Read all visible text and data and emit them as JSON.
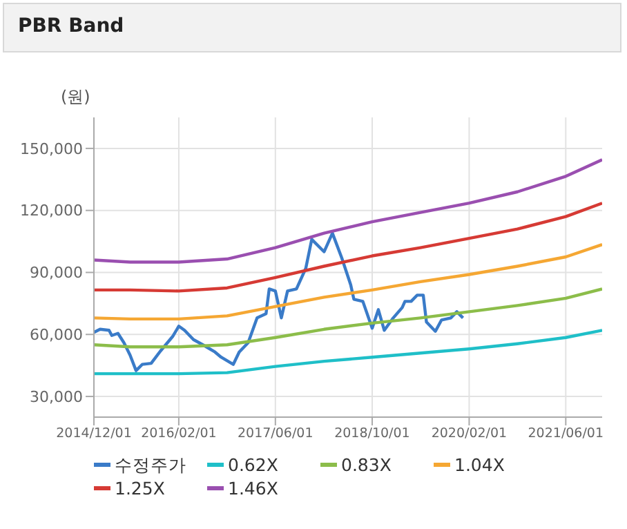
{
  "chart_data": {
    "type": "line",
    "title": "PBR Band",
    "ylabel": "(원)",
    "xlim": [
      "2014-12-01",
      "2021-12-01"
    ],
    "xticks": [
      {
        "value": "2014-12-01",
        "label": "2014/12/01"
      },
      {
        "value": "2016-02-01",
        "label": "2016/02/01"
      },
      {
        "value": "2017-06-01",
        "label": "2017/06/01"
      },
      {
        "value": "2018-10-01",
        "label": "2018/10/01"
      },
      {
        "value": "2020-02-01",
        "label": "2020/02/01"
      },
      {
        "value": "2021-06-01",
        "label": "2021/06/01"
      }
    ],
    "ylim": [
      20000,
      165000
    ],
    "yticks": [
      {
        "value": 30000,
        "label": "30,000"
      },
      {
        "value": 60000,
        "label": "60,000"
      },
      {
        "value": 90000,
        "label": "90,000"
      },
      {
        "value": 120000,
        "label": "120,000"
      },
      {
        "value": 150000,
        "label": "150,000"
      }
    ],
    "grid": true,
    "legend": "bottom",
    "marker": "none",
    "line_style": "solid",
    "series": [
      {
        "name": "수정주가",
        "color": "#3a7bc8",
        "x": [
          "2014-12-01",
          "2015-01-01",
          "2015-02-15",
          "2015-03-01",
          "2015-04-01",
          "2015-05-01",
          "2015-06-01",
          "2015-07-01",
          "2015-08-01",
          "2015-09-15",
          "2015-11-01",
          "2016-01-01",
          "2016-02-01",
          "2016-03-01",
          "2016-04-15",
          "2016-06-01",
          "2016-08-01",
          "2016-09-01",
          "2016-11-01",
          "2016-12-01",
          "2017-01-15",
          "2017-03-01",
          "2017-04-15",
          "2017-05-01",
          "2017-06-01",
          "2017-07-01",
          "2017-08-01",
          "2017-09-15",
          "2017-11-01",
          "2017-12-01",
          "2018-02-01",
          "2018-03-15",
          "2018-05-01",
          "2018-06-15",
          "2018-07-01",
          "2018-08-15",
          "2018-10-01",
          "2018-11-01",
          "2018-12-01",
          "2019-01-15",
          "2019-03-01",
          "2019-03-15",
          "2019-04-15",
          "2019-05-15",
          "2019-06-15",
          "2019-07-01",
          "2019-08-15",
          "2019-09-15",
          "2019-11-01",
          "2019-12-01",
          "2020-01-01"
        ],
        "values": [
          61000,
          62500,
          62000,
          59500,
          60500,
          56000,
          50000,
          42500,
          45500,
          46000,
          52000,
          59000,
          64000,
          62000,
          57500,
          55000,
          51500,
          49000,
          45500,
          51500,
          56000,
          68000,
          70000,
          82000,
          81000,
          68000,
          81000,
          82000,
          92000,
          106000,
          100000,
          109000,
          97000,
          84000,
          77000,
          76000,
          63000,
          72000,
          62000,
          68000,
          73000,
          76000,
          76000,
          79000,
          79000,
          66000,
          61500,
          67000,
          68000,
          71000,
          68000
        ]
      },
      {
        "name": "0.62X",
        "color": "#1fbfc8",
        "x": [
          "2014-12-01",
          "2015-06-01",
          "2016-02-01",
          "2016-10-01",
          "2017-06-01",
          "2018-02-01",
          "2018-10-01",
          "2019-06-01",
          "2020-02-01",
          "2020-10-01",
          "2021-06-01",
          "2021-12-01"
        ],
        "values": [
          41000,
          41000,
          41000,
          41500,
          44500,
          47000,
          49000,
          51000,
          53000,
          55500,
          58500,
          62000
        ]
      },
      {
        "name": "0.83X",
        "color": "#8cbd4a",
        "x": [
          "2014-12-01",
          "2015-06-01",
          "2016-02-01",
          "2016-10-01",
          "2017-06-01",
          "2018-02-01",
          "2018-10-01",
          "2019-06-01",
          "2020-02-01",
          "2020-10-01",
          "2021-06-01",
          "2021-12-01"
        ],
        "values": [
          55000,
          54000,
          54000,
          55000,
          58500,
          62500,
          65500,
          68000,
          71000,
          74000,
          77500,
          82000
        ]
      },
      {
        "name": "1.04X",
        "color": "#f5a733",
        "x": [
          "2014-12-01",
          "2015-06-01",
          "2016-02-01",
          "2016-10-01",
          "2017-06-01",
          "2018-02-01",
          "2018-10-01",
          "2019-06-01",
          "2020-02-01",
          "2020-10-01",
          "2021-06-01",
          "2021-12-01"
        ],
        "values": [
          68000,
          67500,
          67500,
          69000,
          73500,
          78000,
          81500,
          85500,
          89000,
          93000,
          97500,
          103500
        ]
      },
      {
        "name": "1.25X",
        "color": "#d63a34",
        "x": [
          "2014-12-01",
          "2015-06-01",
          "2016-02-01",
          "2016-10-01",
          "2017-06-01",
          "2018-02-01",
          "2018-10-01",
          "2019-06-01",
          "2020-02-01",
          "2020-10-01",
          "2021-06-01",
          "2021-12-01"
        ],
        "values": [
          81500,
          81500,
          81000,
          82500,
          87500,
          93000,
          98000,
          102000,
          106500,
          111000,
          117000,
          123500
        ]
      },
      {
        "name": "1.46X",
        "color": "#9a4fb0",
        "x": [
          "2014-12-01",
          "2015-06-01",
          "2016-02-01",
          "2016-10-01",
          "2017-06-01",
          "2018-02-01",
          "2018-10-01",
          "2019-06-01",
          "2020-02-01",
          "2020-10-01",
          "2021-06-01",
          "2021-12-01"
        ],
        "values": [
          96000,
          95000,
          95000,
          96500,
          102000,
          109000,
          114500,
          119000,
          123500,
          129000,
          136500,
          144500
        ]
      }
    ]
  }
}
